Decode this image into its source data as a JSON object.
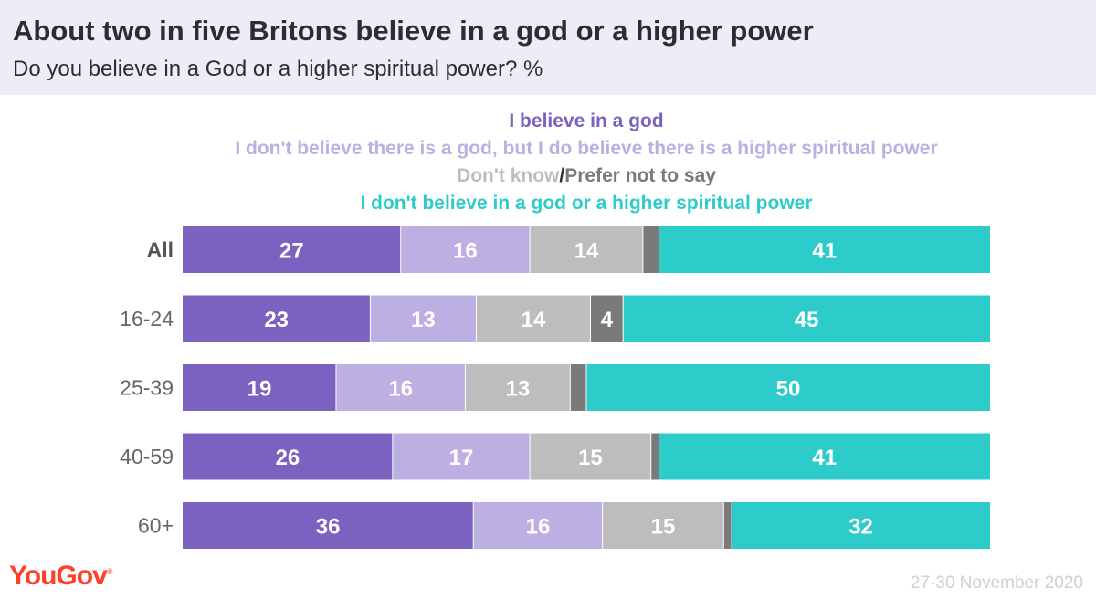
{
  "title": "About two in five Britons believe in a god or a higher power",
  "subtitle": "Do you believe in a God or a higher spiritual power? %",
  "legend": {
    "god": "I believe in a god",
    "higher": "I don't believe there is a god, but I do believe there is a higher spiritual power",
    "dontknow": "Don't know",
    "slash": "/",
    "prefer": "Prefer not to say",
    "neither": "I don't believe in a god or a higher spiritual power"
  },
  "brand": "YouGov",
  "date": "27-30 November 2020",
  "colors": {
    "god": "#7b61c0",
    "higher": "#bcb0e2",
    "dontknow": "#bdbdbd",
    "prefer": "#7a7a7a",
    "neither": "#2dcbc9",
    "title": "#2b2b3a",
    "brand": "#ff412c",
    "date": "#cfcfcf",
    "header_bg": "#efecf7"
  },
  "chart_data": {
    "type": "bar",
    "orientation": "horizontal",
    "stacked": true,
    "categories": [
      "All",
      "16-24",
      "25-39",
      "40-59",
      "60+"
    ],
    "series": [
      {
        "name": "I believe in a god",
        "values": [
          27,
          23,
          19,
          26,
          36
        ]
      },
      {
        "name": "I don't believe there is a god, but I do believe there is a higher spiritual power",
        "values": [
          16,
          13,
          16,
          17,
          16
        ]
      },
      {
        "name": "Don't know",
        "values": [
          14,
          14,
          13,
          15,
          15
        ]
      },
      {
        "name": "Prefer not to say",
        "values": [
          2,
          4,
          2,
          1,
          1
        ]
      },
      {
        "name": "I don't believe in a god or a higher spiritual power",
        "values": [
          41,
          45,
          50,
          41,
          32
        ]
      }
    ],
    "labels_shown_threshold": 3,
    "xlim": [
      0,
      100
    ]
  }
}
